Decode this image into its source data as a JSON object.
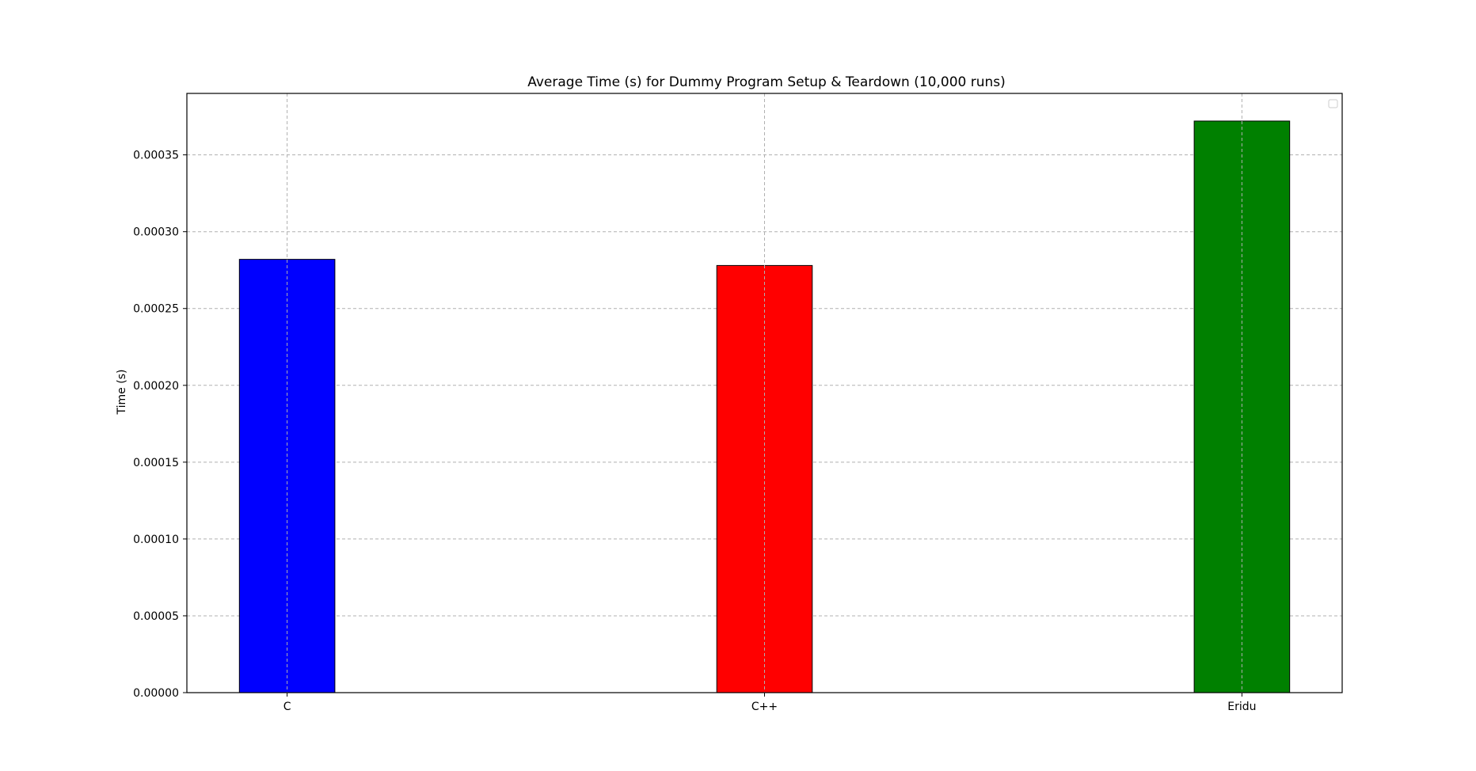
{
  "chart_data": {
    "type": "bar",
    "title": "Average Time (s) for Dummy Program Setup & Teardown (10,000 runs)",
    "xlabel": "",
    "ylabel": "Time (s)",
    "categories": [
      "C",
      "C++",
      "Eridu"
    ],
    "values": [
      0.000282,
      0.000278,
      0.000372
    ],
    "colors": [
      "#0000ff",
      "#ff0000",
      "#008000"
    ],
    "edgecolor": "#000000",
    "ylim": [
      0,
      0.00039
    ],
    "yticks": [
      0,
      5e-05,
      0.0001,
      0.00015,
      0.0002,
      0.00025,
      0.0003,
      0.00035
    ],
    "ytick_labels": [
      "0.00000",
      "0.00005",
      "0.00010",
      "0.00015",
      "0.00020",
      "0.00025",
      "0.00030",
      "0.00035"
    ],
    "grid": true,
    "grid_color": "#b0b0b0",
    "legend": "upper right",
    "legend_entries": []
  }
}
